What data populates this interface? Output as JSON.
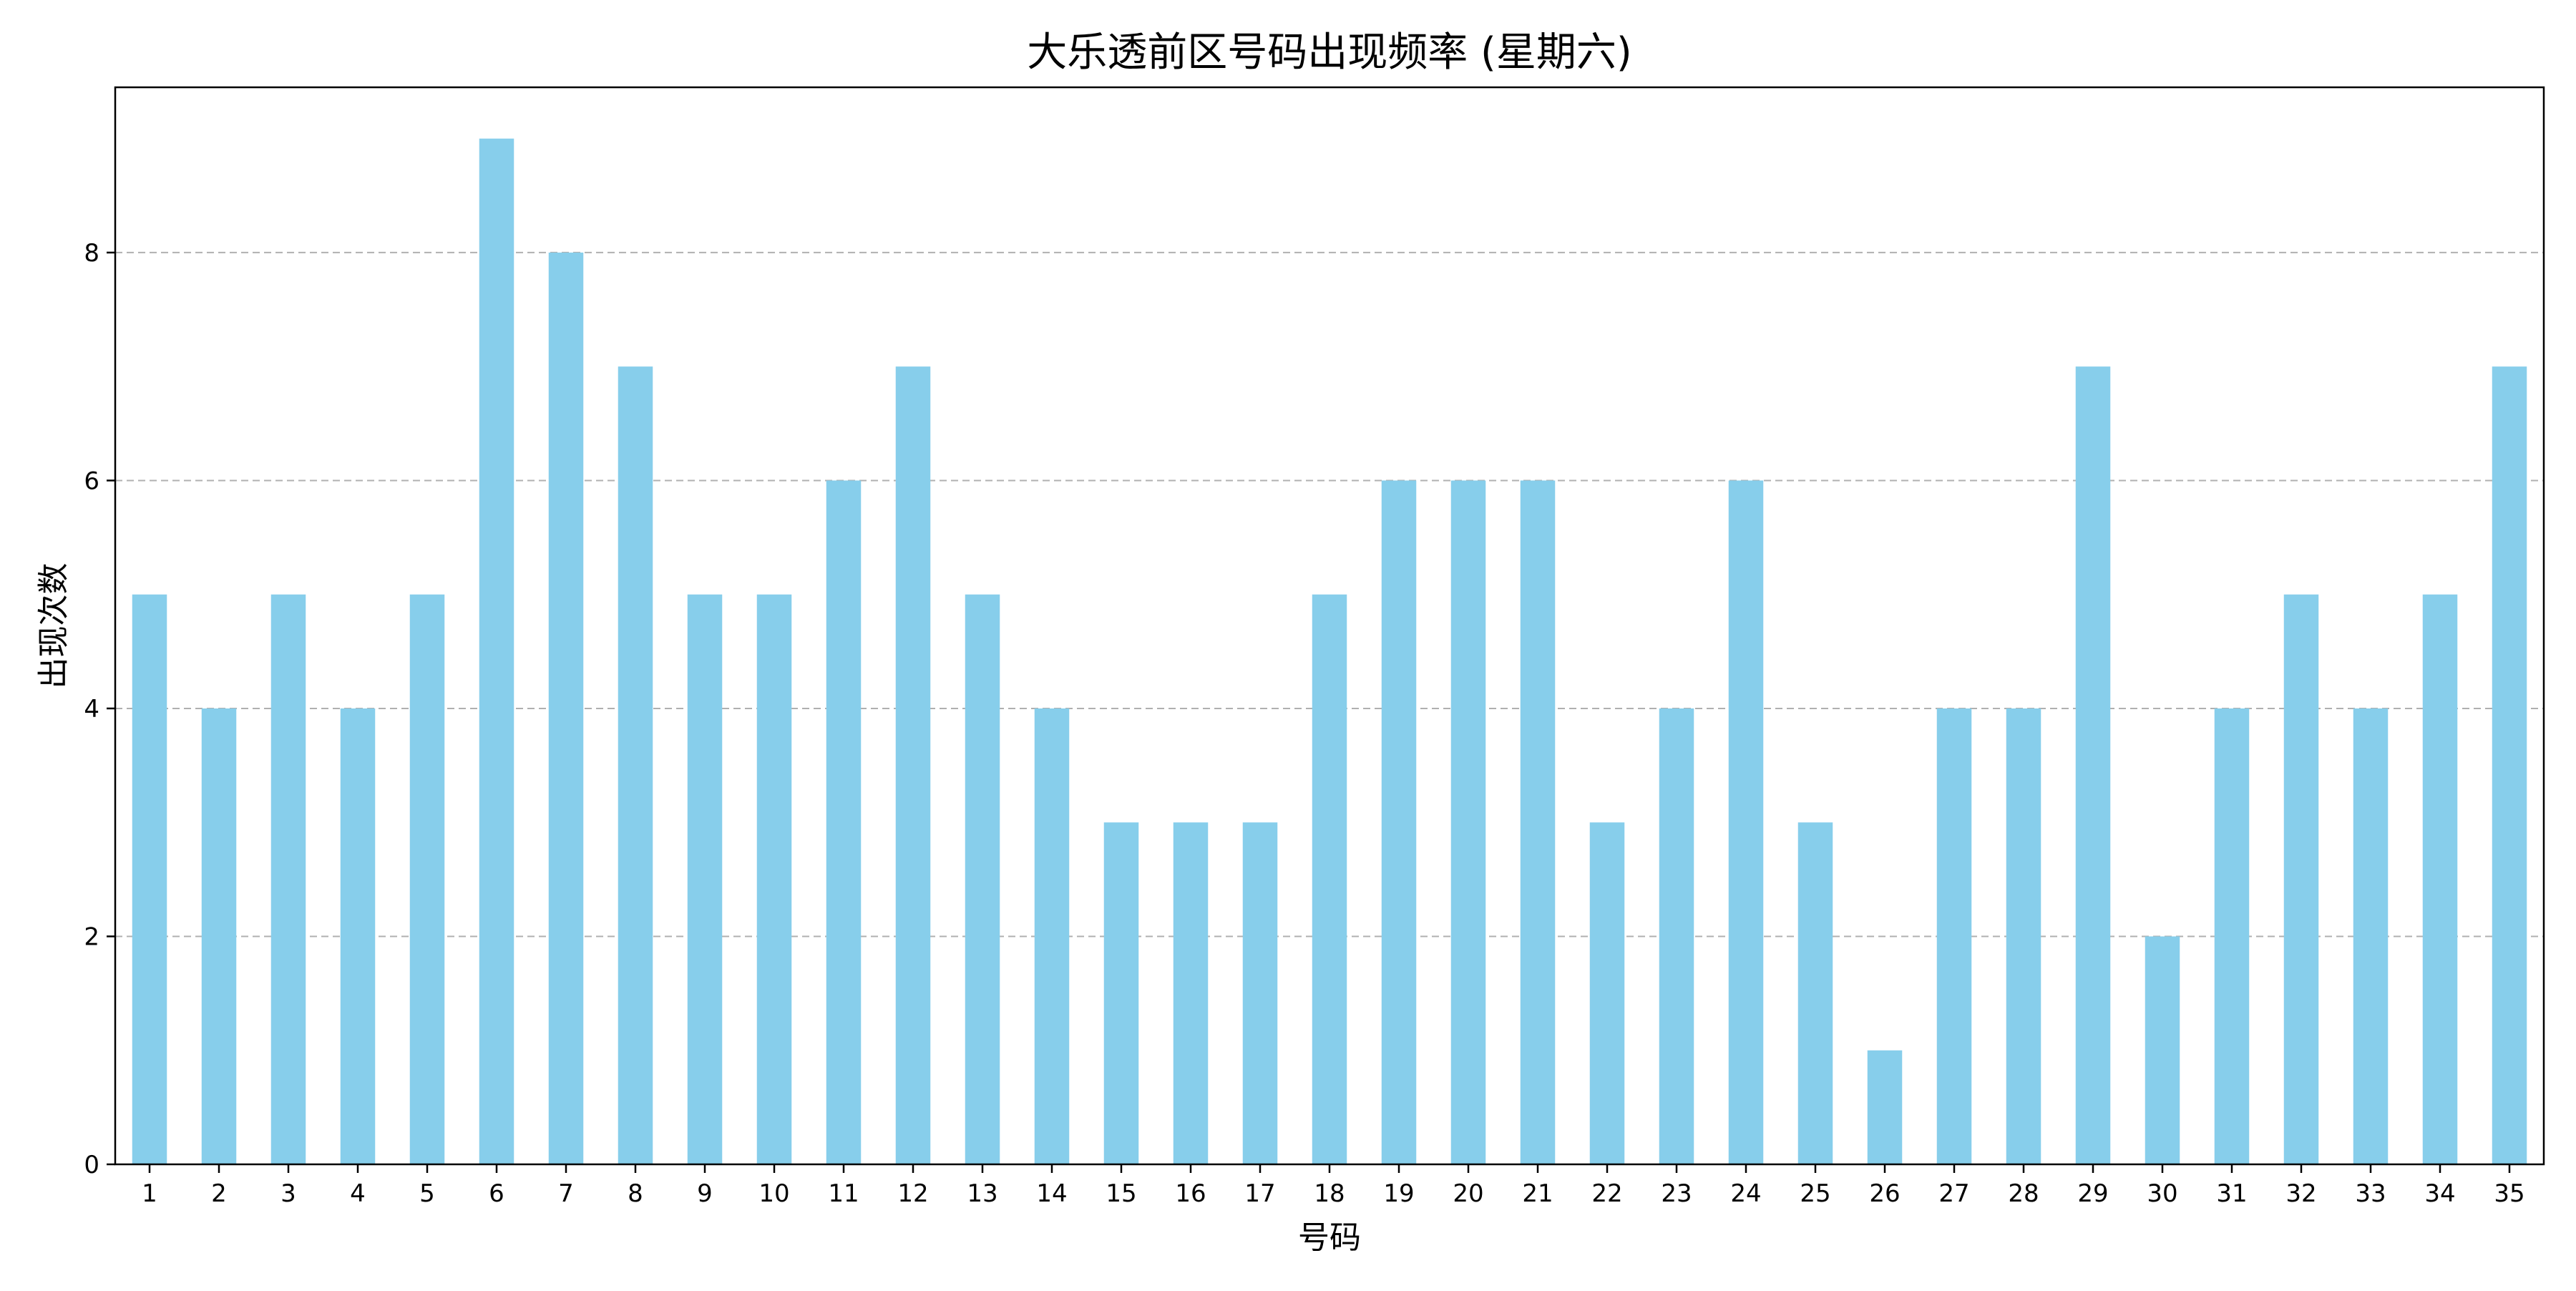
{
  "chart_data": {
    "type": "bar",
    "title": "大乐透前区号码出现频率 (星期六)",
    "xlabel": "号码",
    "ylabel": "出现次数",
    "categories": [
      "1",
      "2",
      "3",
      "4",
      "5",
      "6",
      "7",
      "8",
      "9",
      "10",
      "11",
      "12",
      "13",
      "14",
      "15",
      "16",
      "17",
      "18",
      "19",
      "20",
      "21",
      "22",
      "23",
      "24",
      "25",
      "26",
      "27",
      "28",
      "29",
      "30",
      "31",
      "32",
      "33",
      "34",
      "35"
    ],
    "values": [
      5,
      4,
      5,
      4,
      5,
      9,
      8,
      7,
      5,
      5,
      6,
      7,
      5,
      4,
      3,
      3,
      3,
      5,
      6,
      6,
      6,
      3,
      4,
      6,
      3,
      1,
      4,
      4,
      7,
      2,
      4,
      5,
      4,
      5,
      7
    ],
    "yticks": [
      "0",
      "2",
      "4",
      "6",
      "8"
    ],
    "ylim": [
      0,
      9.45
    ],
    "grid": "y-dashed",
    "bar_color": "#87CEEB",
    "grid_color": "#b0b0b0"
  }
}
